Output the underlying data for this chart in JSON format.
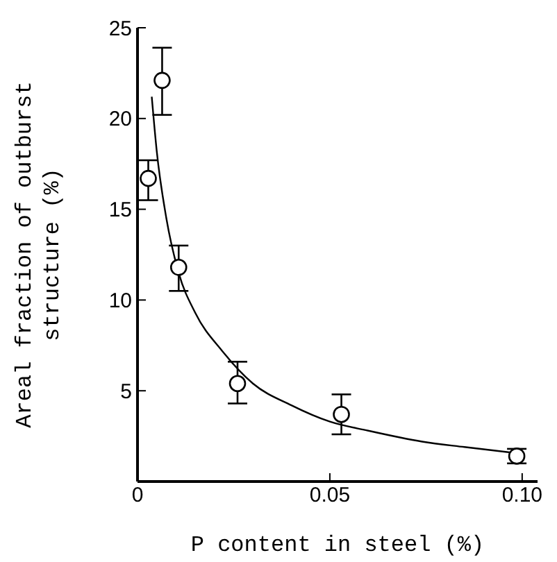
{
  "chart_data": {
    "type": "scatter",
    "xlabel": "P content in steel (%)",
    "ylabel": "Areal fraction of outburst\nstructure (%)",
    "xlim": [
      0,
      0.104
    ],
    "xticks": [
      0,
      {
        "value": 0.05,
        "label": "0.05"
      },
      {
        "value": 0.1,
        "label": "0.10"
      }
    ],
    "ylim": [
      0,
      25
    ],
    "yticks": [
      5,
      10,
      15,
      20,
      25
    ],
    "grid": false,
    "series": [
      {
        "marker": "circle",
        "color": "#000000",
        "x": [
          0.0028,
          0.0064,
          0.0107,
          0.026,
          0.053,
          0.0986
        ],
        "values": [
          16.7,
          22.1,
          11.8,
          5.4,
          3.7,
          1.4
        ],
        "errors": [
          [
            15.5,
            17.7
          ],
          [
            20.2,
            23.9
          ],
          [
            10.5,
            13.0
          ],
          [
            4.3,
            6.6
          ],
          [
            2.6,
            4.8
          ],
          [
            1.0,
            1.8
          ]
        ]
      },
      {
        "type": "line",
        "marker": "none",
        "color": "#000000",
        "x": [
          0.0037,
          0.005,
          0.0075,
          0.0107,
          0.015,
          0.022,
          0.03,
          0.04,
          0.05,
          0.06,
          0.074,
          0.085,
          0.097
        ],
        "values": [
          21.2,
          18.2,
          14.5,
          11.5,
          9.3,
          7.2,
          5.4,
          4.2,
          3.3,
          2.8,
          2.2,
          1.9,
          1.6
        ]
      }
    ]
  }
}
